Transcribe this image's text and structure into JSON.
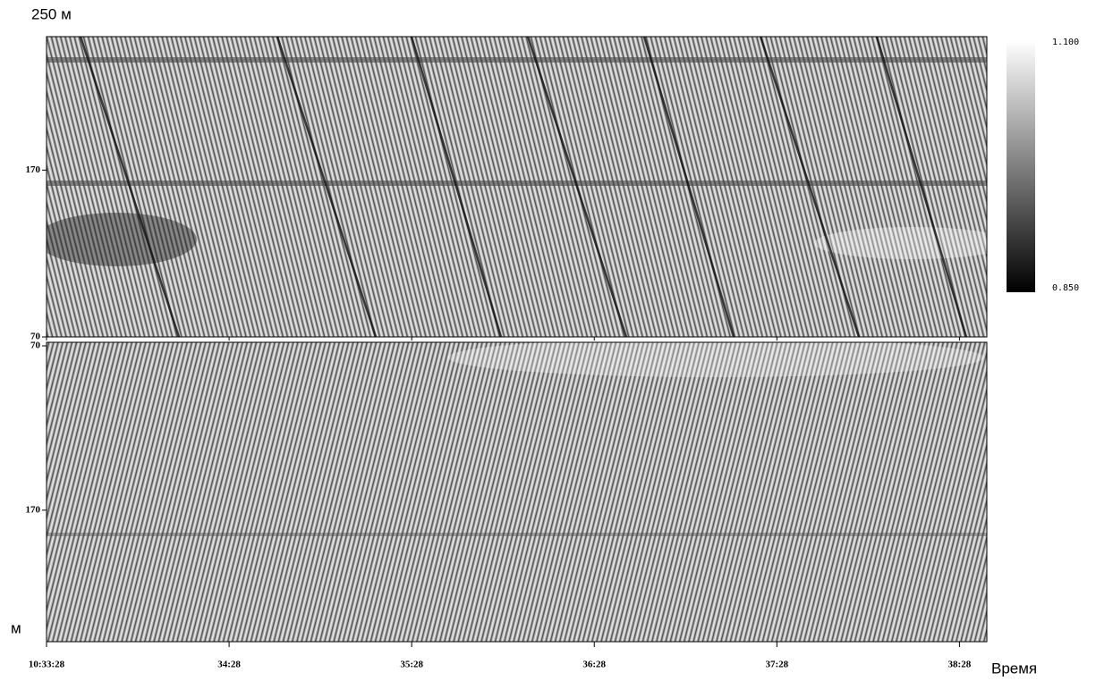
{
  "chart_data": {
    "type": "waterfall",
    "title": "250 м",
    "ylabel": "м",
    "xlabel": "Время",
    "xlim": [
      0,
      309
    ],
    "xticks": [
      {
        "value": 0,
        "label": "10:33:28"
      },
      {
        "value": 60,
        "label": "34:28"
      },
      {
        "value": 120,
        "label": "35:28"
      },
      {
        "value": 180,
        "label": "36:28"
      },
      {
        "value": 240,
        "label": "37:28"
      },
      {
        "value": 300,
        "label": "38:28"
      }
    ],
    "panels": [
      {
        "ylim": [
          70,
          250
        ],
        "yticks": [
          170,
          70
        ],
        "inverted": false
      },
      {
        "ylim": [
          70,
          250
        ],
        "yticks": [
          70,
          170
        ],
        "inverted": true
      }
    ],
    "colorbar": {
      "clim": [
        0.85,
        1.1
      ],
      "ticks": [
        {
          "value": 1.1,
          "label": "1.100"
        },
        {
          "value": 0.85,
          "label": "0.850"
        }
      ]
    }
  }
}
